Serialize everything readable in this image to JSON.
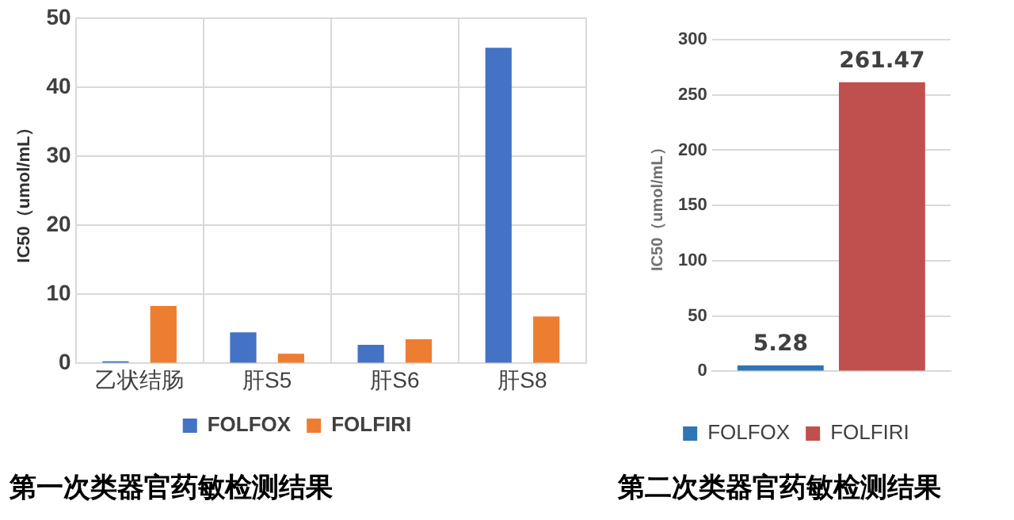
{
  "chart_data": [
    {
      "type": "bar",
      "ylabel": "IC50（umol/mL）",
      "categories": [
        "乙状结肠",
        "肝S5",
        "肝S6",
        "肝S8"
      ],
      "series": [
        {
          "name": "FOLFOX",
          "color": "#4472c4",
          "values": [
            0.3,
            4.5,
            2.7,
            45.7
          ]
        },
        {
          "name": "FOLFIRI",
          "color": "#ed7d31",
          "values": [
            8.3,
            1.4,
            3.5,
            6.8
          ]
        }
      ],
      "ylim": [
        0,
        50
      ],
      "yticks": [
        0,
        10,
        20,
        30,
        40,
        50
      ],
      "grid": true,
      "legend": "bottom",
      "annotations": [
        "第一次类器官药敏检测结果"
      ]
    },
    {
      "type": "bar",
      "ylabel": "IC50（umol/mL）",
      "categories": [
        null
      ],
      "series": [
        {
          "name": "FOLFOX",
          "color": "#2e75b6",
          "values": [
            5.28
          ]
        },
        {
          "name": "FOLFIRI",
          "color": "#c0504d",
          "values": [
            261.47
          ]
        }
      ],
      "ylim": [
        0,
        300
      ],
      "yticks": [
        0,
        50,
        100,
        150,
        200,
        250,
        300
      ],
      "grid": "y",
      "legend": "bottom",
      "data_labels": true,
      "annotations": [
        "第二次类器官药敏检测结果"
      ]
    }
  ]
}
